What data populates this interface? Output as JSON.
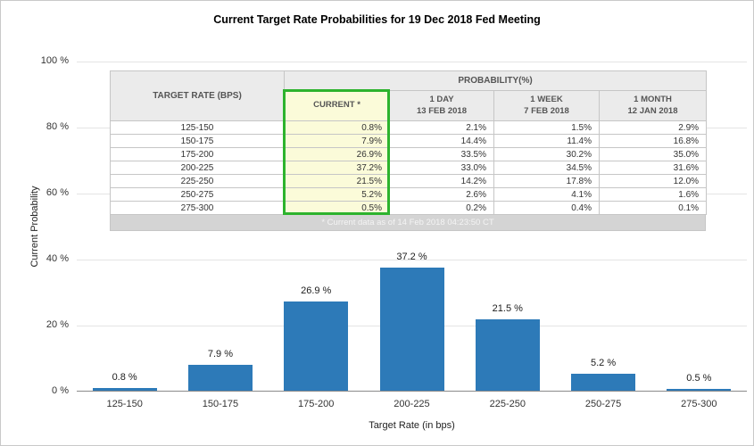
{
  "title": "Current Target Rate Probabilities for 19 Dec 2018 Fed Meeting",
  "chart_data": {
    "type": "bar",
    "title": "Current Target Rate Probabilities for 19 Dec 2018 Fed Meeting",
    "categories": [
      "125-150",
      "150-175",
      "175-200",
      "200-225",
      "225-250",
      "250-275",
      "275-300"
    ],
    "values": [
      0.8,
      7.9,
      26.9,
      37.2,
      21.5,
      5.2,
      0.5
    ],
    "bar_labels": [
      "0.8 %",
      "7.9 %",
      "26.9 %",
      "37.2 %",
      "21.5 %",
      "5.2 %",
      "0.5 %"
    ],
    "xlabel": "Target Rate (in bps)",
    "ylabel": "Current Probability",
    "ylim": [
      0,
      100
    ],
    "ytick_labels": [
      "100 %",
      "80 %",
      "60 %",
      "40 %",
      "20 %",
      "0 %"
    ],
    "grid": "horizontal",
    "legend": "none",
    "bar_color": "#2d7ab8",
    "highlight_color": "#2db32d",
    "current_column_bg": "#fbfbd9"
  },
  "table": {
    "row_header": "TARGET RATE (BPS)",
    "group_header": "PROBABILITY(%)",
    "columns": [
      {
        "label": "CURRENT *",
        "date": ""
      },
      {
        "label": "1 DAY",
        "date": "13 FEB 2018"
      },
      {
        "label": "1 WEEK",
        "date": "7 FEB 2018"
      },
      {
        "label": "1 MONTH",
        "date": "12 JAN 2018"
      }
    ],
    "rows": [
      {
        "rate": "125-150",
        "values": [
          "0.8%",
          "2.1%",
          "1.5%",
          "2.9%"
        ]
      },
      {
        "rate": "150-175",
        "values": [
          "7.9%",
          "14.4%",
          "11.4%",
          "16.8%"
        ]
      },
      {
        "rate": "175-200",
        "values": [
          "26.9%",
          "33.5%",
          "30.2%",
          "35.0%"
        ]
      },
      {
        "rate": "200-225",
        "values": [
          "37.2%",
          "33.0%",
          "34.5%",
          "31.6%"
        ]
      },
      {
        "rate": "225-250",
        "values": [
          "21.5%",
          "14.2%",
          "17.8%",
          "12.0%"
        ]
      },
      {
        "rate": "250-275",
        "values": [
          "5.2%",
          "2.6%",
          "4.1%",
          "1.6%"
        ]
      },
      {
        "rate": "275-300",
        "values": [
          "0.5%",
          "0.2%",
          "0.4%",
          "0.1%"
        ]
      }
    ],
    "footnote": "* Current data as of 14 Feb 2018 04:23:50 CT"
  }
}
